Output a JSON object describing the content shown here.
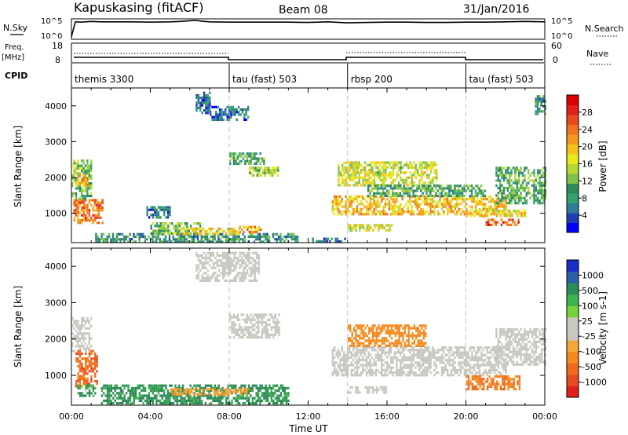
{
  "header": {
    "station": "Kapuskasing (fitACF)",
    "beam": "Beam 08",
    "date": "31/Jan/2016"
  },
  "noise_panel": {
    "left_label": "N.Sky",
    "right_label": "N.Search",
    "left_ticks": [
      "10^5",
      "10^0"
    ],
    "right_ticks": [
      "10^5",
      "10^0"
    ],
    "series_name": "N.Sky",
    "x_hours": [
      0,
      0.2,
      0.5,
      1,
      1.5,
      2,
      3,
      4,
      5,
      5.5,
      6,
      6.3,
      6.6,
      7,
      8,
      9,
      10,
      11,
      12,
      13,
      14,
      15,
      16,
      17,
      18,
      19,
      20,
      21,
      22,
      23,
      24
    ],
    "log_values": [
      0.3,
      4.6,
      4.5,
      4.7,
      4.6,
      4.6,
      4.6,
      4.5,
      4.6,
      4.7,
      4.9,
      5.0,
      4.8,
      4.6,
      4.5,
      4.5,
      4.5,
      4.5,
      4.4,
      4.6,
      4.3,
      4.4,
      4.5,
      4.5,
      4.4,
      4.4,
      4.5,
      4.5,
      4.6,
      4.7,
      4.6
    ]
  },
  "freq_panel": {
    "left_label": "Freq.",
    "left_unit": "[MHz]",
    "right_label": "Nave",
    "left_ticks": [
      "18",
      "8"
    ],
    "right_ticks": [
      "60",
      "0"
    ]
  },
  "cpid_panel": {
    "label": "CPID",
    "segments": [
      {
        "name": "themis 3300",
        "start": 0,
        "end": 8
      },
      {
        "name": "tau (fast) 503",
        "start": 8,
        "end": 14
      },
      {
        "name": "rbsp 200",
        "start": 14,
        "end": 20
      },
      {
        "name": "tau (fast) 503",
        "start": 20,
        "end": 24
      }
    ]
  },
  "axes": {
    "ylabel": "Slant Range [km]",
    "xlabel": "Time UT",
    "x_ticks": [
      "00:00",
      "04:00",
      "08:00",
      "12:00",
      "16:00",
      "20:00",
      "00:00"
    ],
    "y_ticks": [
      "1000",
      "2000",
      "3000",
      "4000"
    ]
  },
  "power_colorbar": {
    "label": "Power [dB]",
    "ticks": [
      "4",
      "8",
      "12",
      "16",
      "20",
      "24",
      "28"
    ],
    "colors": [
      "#0000ff",
      "#1e3fb4",
      "#2e7d9a",
      "#35a070",
      "#2e8b57",
      "#7fc24a",
      "#b8d832",
      "#e8e81e",
      "#f5c21e",
      "#f59a1e",
      "#f0741e",
      "#e84a1e",
      "#e01e1e",
      "#dd0000"
    ]
  },
  "velocity_colorbar": {
    "label": "Velocity [m s-1]",
    "ticks": [
      "1000",
      "500",
      "100",
      "25",
      "-25",
      "-100",
      "-500",
      "-1000"
    ],
    "colors": [
      "#1a2ec8",
      "#2a5fa8",
      "#2e8b57",
      "#3cb44b",
      "#77d23a",
      "#c8c8c0",
      "#c8c8c0",
      "#f5a83a",
      "#f58a1e",
      "#f06a1e",
      "#e84a1e",
      "#e01e1e"
    ]
  },
  "chart_data": {
    "type": "heatmap",
    "title": "Kapuskasing (fitACF)",
    "xlabel": "Time UT",
    "ylabel": "Slant Range [km]",
    "xlim_hours": [
      0,
      24
    ],
    "ylim_km": [
      180,
      4500
    ],
    "grid": false,
    "mode_change_hours": [
      8,
      14,
      20
    ],
    "power_regions": [
      {
        "t0": 0.1,
        "t1": 1.6,
        "r0": 700,
        "r1": 1400,
        "level": 24
      },
      {
        "t0": 0.0,
        "t1": 1.0,
        "r0": 1400,
        "r1": 2500,
        "level": 12
      },
      {
        "t0": 0.2,
        "t1": 0.8,
        "r0": 1800,
        "r1": 2100,
        "level": 20
      },
      {
        "t0": 1.2,
        "t1": 11.5,
        "r0": 200,
        "r1": 450,
        "level": 8
      },
      {
        "t0": 4.0,
        "t1": 6.5,
        "r0": 450,
        "r1": 750,
        "level": 12
      },
      {
        "t0": 5.5,
        "t1": 8.5,
        "r0": 450,
        "r1": 600,
        "level": 18
      },
      {
        "t0": 8.5,
        "t1": 9.6,
        "r0": 500,
        "r1": 650,
        "level": 22
      },
      {
        "t0": 3.8,
        "t1": 5.0,
        "r0": 900,
        "r1": 1200,
        "level": 6
      },
      {
        "t0": 6.3,
        "t1": 7.0,
        "r0": 3800,
        "r1": 4400,
        "level": 5
      },
      {
        "t0": 7.0,
        "t1": 9.0,
        "r0": 3600,
        "r1": 4000,
        "level": 5
      },
      {
        "t0": 8.0,
        "t1": 9.8,
        "r0": 2400,
        "r1": 2700,
        "level": 10
      },
      {
        "t0": 9.0,
        "t1": 10.5,
        "r0": 2050,
        "r1": 2300,
        "level": 14
      },
      {
        "t0": 13.5,
        "t1": 18.5,
        "r0": 1800,
        "r1": 2450,
        "level": 16
      },
      {
        "t0": 13.2,
        "t1": 22.0,
        "r0": 1000,
        "r1": 1500,
        "level": 20
      },
      {
        "t0": 15.0,
        "t1": 21.0,
        "r0": 1450,
        "r1": 1800,
        "level": 10
      },
      {
        "t0": 20.0,
        "t1": 23.0,
        "r0": 900,
        "r1": 1100,
        "level": 18
      },
      {
        "t0": 21.0,
        "t1": 22.7,
        "r0": 650,
        "r1": 850,
        "level": 26
      },
      {
        "t0": 14.0,
        "t1": 16.2,
        "r0": 550,
        "r1": 700,
        "level": 16
      },
      {
        "t0": 12.2,
        "t1": 14.0,
        "r0": 180,
        "r1": 320,
        "level": 6
      },
      {
        "t0": 21.5,
        "t1": 24.0,
        "r0": 1300,
        "r1": 2300,
        "level": 10
      },
      {
        "t0": 23.5,
        "t1": 24.0,
        "r0": 3800,
        "r1": 4300,
        "level": 8
      }
    ],
    "velocity_regions": [
      {
        "t0": 0.2,
        "t1": 1.3,
        "r0": 700,
        "r1": 1700,
        "level": -400
      },
      {
        "t0": 0.0,
        "t1": 1.0,
        "r0": 1700,
        "r1": 2600,
        "level": 0
      },
      {
        "t0": 0.3,
        "t1": 1.2,
        "r0": 450,
        "r1": 750,
        "level": 50
      },
      {
        "t0": 1.5,
        "t1": 11.0,
        "r0": 200,
        "r1": 750,
        "level": 60
      },
      {
        "t0": 5.0,
        "t1": 9.0,
        "r0": 450,
        "r1": 650,
        "level": -80
      },
      {
        "t0": 6.3,
        "t1": 9.5,
        "r0": 3600,
        "r1": 4400,
        "level": 0
      },
      {
        "t0": 8.0,
        "t1": 10.5,
        "r0": 2050,
        "r1": 2700,
        "level": 0
      },
      {
        "t0": 13.2,
        "t1": 22.0,
        "r0": 1000,
        "r1": 1800,
        "level": 0
      },
      {
        "t0": 14.0,
        "t1": 18.0,
        "r0": 1800,
        "r1": 2400,
        "level": -200
      },
      {
        "t0": 20.0,
        "t1": 22.7,
        "r0": 650,
        "r1": 1000,
        "level": -300
      },
      {
        "t0": 14.0,
        "t1": 16.0,
        "r0": 550,
        "r1": 700,
        "level": 0
      },
      {
        "t0": 21.5,
        "t1": 24.0,
        "r0": 1300,
        "r1": 2300,
        "level": 0
      }
    ]
  }
}
